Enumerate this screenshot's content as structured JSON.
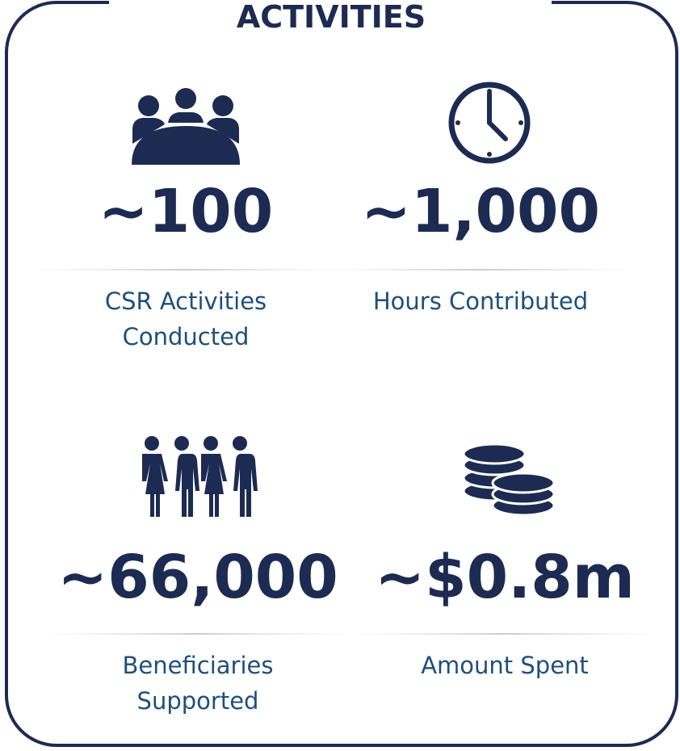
{
  "title": "ACTIVITIES",
  "items": [
    {
      "value": "~100",
      "label": [
        "CSR Activities",
        "Conducted"
      ]
    },
    {
      "value": "~1,000",
      "label": [
        "Hours Contributed"
      ]
    },
    {
      "value": "~66,000",
      "label": [
        "Beneficiaries",
        "Supported"
      ]
    },
    {
      "value": "~$0.8m",
      "label": [
        "Amount Spent"
      ]
    }
  ]
}
